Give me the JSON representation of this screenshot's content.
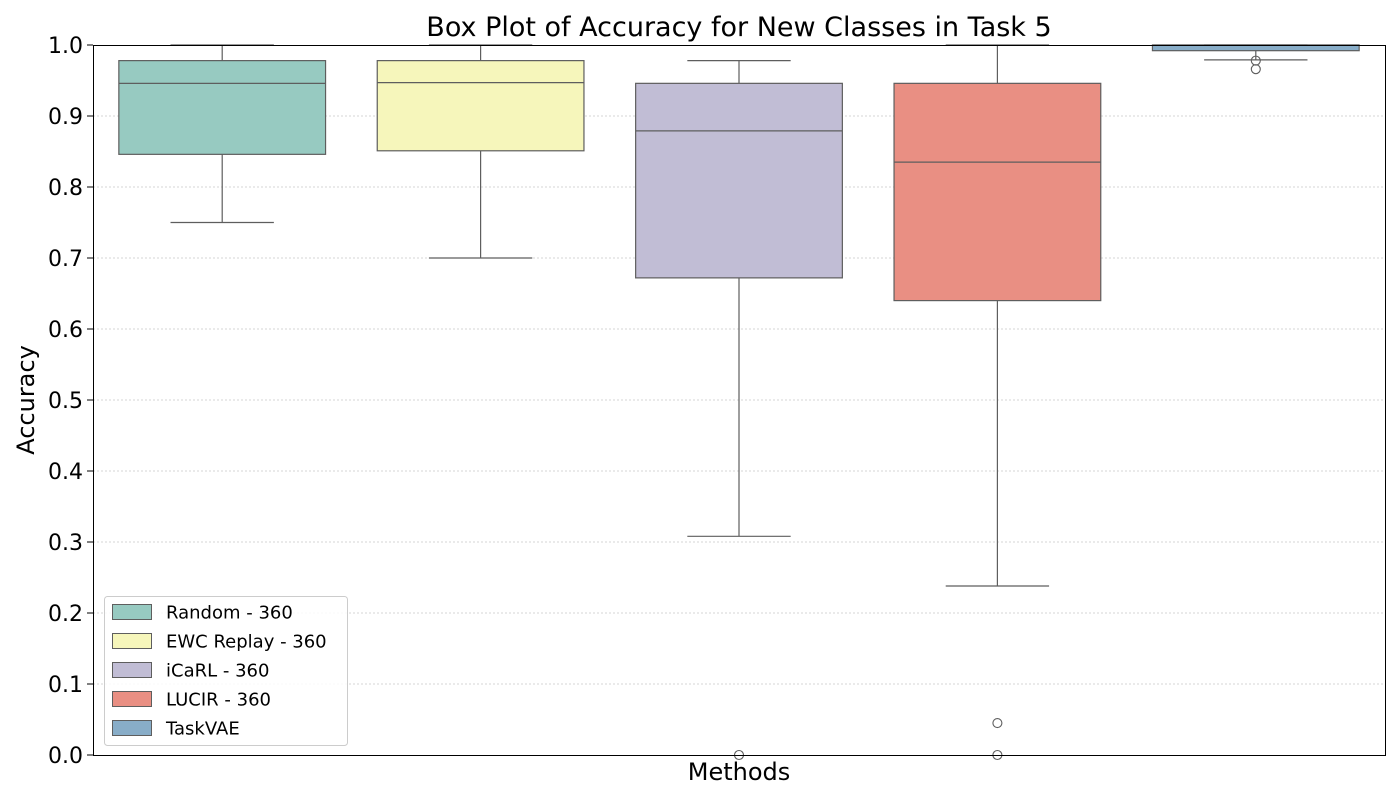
{
  "chart_data": {
    "type": "box",
    "title": "Box Plot of Accuracy for New Classes in Task 5",
    "xlabel": "Methods",
    "ylabel": "Accuracy",
    "ylim": [
      0.0,
      1.0
    ],
    "yticks": [
      "0.0",
      "0.1",
      "0.2",
      "0.3",
      "0.4",
      "0.5",
      "0.6",
      "0.7",
      "0.8",
      "0.9",
      "1.0"
    ],
    "grid": "horizontal dotted",
    "legend_position": "lower-left",
    "series": [
      {
        "name": "Random - 360",
        "color": "#97cac1",
        "whislo": 0.75,
        "q1": 0.846,
        "median": 0.946,
        "q3": 0.978,
        "whishi": 1.0,
        "fliers": []
      },
      {
        "name": "EWC Replay - 360",
        "color": "#f6f6bb",
        "whislo": 0.7,
        "q1": 0.851,
        "median": 0.947,
        "q3": 0.978,
        "whishi": 1.0,
        "fliers": []
      },
      {
        "name": "iCaRL - 360",
        "color": "#c1bdd5",
        "whislo": 0.308,
        "q1": 0.672,
        "median": 0.879,
        "q3": 0.946,
        "whishi": 0.978,
        "fliers": [
          0.0
        ]
      },
      {
        "name": "LUCIR - 360",
        "color": "#e98f83",
        "whislo": 0.238,
        "q1": 0.64,
        "median": 0.835,
        "q3": 0.946,
        "whishi": 1.0,
        "fliers": [
          0.045,
          0.0
        ]
      },
      {
        "name": "TaskVAE",
        "color": "#88adc8",
        "whislo": 0.979,
        "q1": 0.992,
        "median": 1.0,
        "q3": 1.0,
        "whishi": 1.0,
        "fliers": [
          0.978,
          0.966
        ]
      }
    ]
  }
}
